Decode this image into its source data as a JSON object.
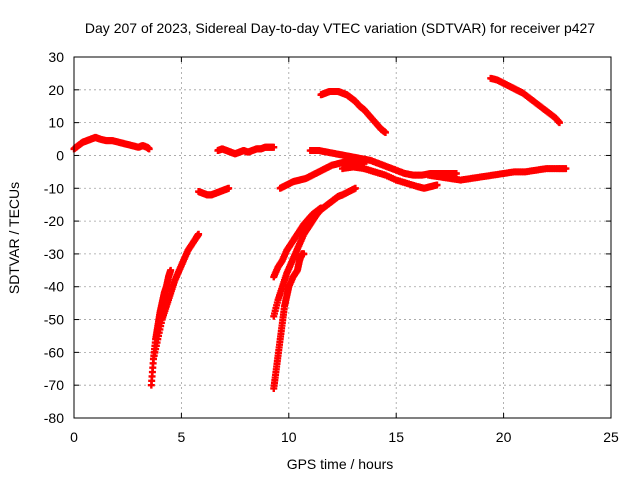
{
  "chart_data": {
    "type": "scatter",
    "title": "Day 207 of 2023, Sidereal Day-to-day VTEC variation (SDTVAR) for receiver p427",
    "xlabel": "GPS time / hours",
    "ylabel": "SDTVAR / TECUs",
    "xlim": [
      0,
      25
    ],
    "ylim": [
      -80,
      30
    ],
    "xticks": [
      0,
      5,
      10,
      15,
      20,
      25
    ],
    "yticks": [
      -80,
      -70,
      -60,
      -50,
      -40,
      -30,
      -20,
      -10,
      0,
      10,
      20,
      30
    ],
    "grid": true,
    "marker": "+",
    "colors": {
      "series": "#ff0000",
      "grid": "#a0a0a0",
      "axis": "#000000"
    },
    "series": [
      {
        "x": [
          0.0,
          0.2,
          0.4,
          0.6,
          0.8,
          1.0,
          1.2,
          1.5,
          1.8,
          2.1,
          2.4,
          2.7,
          3.0,
          3.2,
          3.4,
          3.5
        ],
        "y": [
          2,
          3,
          4,
          4.5,
          5,
          5.5,
          5,
          4.5,
          4.5,
          4,
          3.5,
          3,
          2.5,
          3,
          2.5,
          2
        ]
      },
      {
        "x": [
          3.6,
          3.7,
          3.8,
          3.9,
          4.0,
          4.1,
          4.2,
          4.3,
          4.4,
          4.5
        ],
        "y": [
          -70,
          -62,
          -56,
          -52,
          -48,
          -45,
          -42,
          -40,
          -37,
          -35
        ]
      },
      {
        "x": [
          3.7,
          3.9,
          4.1,
          4.3,
          4.5,
          4.7,
          4.9,
          5.1,
          5.3,
          5.5,
          5.7,
          5.8
        ],
        "y": [
          -62,
          -56,
          -50,
          -46,
          -42,
          -38,
          -35,
          -32,
          -29,
          -27,
          -25,
          -24
        ]
      },
      {
        "x": [
          5.8,
          6.0,
          6.2,
          6.4,
          6.6,
          6.8,
          7.0,
          7.2
        ],
        "y": [
          -11,
          -11.5,
          -12,
          -12,
          -11.5,
          -11,
          -10.5,
          -10
        ]
      },
      {
        "x": [
          6.7,
          6.9,
          7.1,
          7.3,
          7.5,
          7.7,
          7.9,
          8.1,
          8.3,
          8.5,
          8.7,
          8.9,
          9.1,
          9.3
        ],
        "y": [
          1.5,
          2,
          1.5,
          1,
          0.5,
          1,
          1.5,
          1,
          1.5,
          2,
          2,
          2.5,
          2.5,
          2.5
        ]
      },
      {
        "x": [
          9.3,
          9.4,
          9.5,
          9.6,
          9.7,
          9.8,
          9.9,
          10.0,
          10.2,
          10.4,
          10.5,
          10.6,
          10.7
        ],
        "y": [
          -71,
          -66,
          -61,
          -56,
          -51,
          -46,
          -43,
          -40,
          -37,
          -35,
          -32,
          -30,
          -30
        ]
      },
      {
        "x": [
          9.3,
          9.5,
          9.7,
          9.9,
          10.1,
          10.3,
          10.5,
          10.7,
          10.9,
          11.1,
          11.3,
          11.5,
          11.7,
          11.9,
          12.1,
          12.3,
          12.5,
          12.8,
          13.1
        ],
        "y": [
          -49,
          -44,
          -40,
          -36,
          -33,
          -30,
          -27,
          -24,
          -22,
          -20,
          -18,
          -16.5,
          -15.5,
          -14.5,
          -13.5,
          -12.5,
          -12,
          -11,
          -10
        ]
      },
      {
        "x": [
          9.3,
          9.5,
          9.7,
          9.9,
          10.1,
          10.3,
          10.5,
          10.7,
          10.9,
          11.1,
          11.3,
          11.5
        ],
        "y": [
          -37,
          -34,
          -32,
          -29,
          -27,
          -25,
          -23,
          -21,
          -19.5,
          -18,
          -17,
          -16
        ]
      },
      {
        "x": [
          9.6,
          9.9,
          10.2,
          10.5,
          10.8,
          11.1,
          11.4,
          11.7,
          12.0,
          12.3,
          12.6,
          12.9,
          13.2,
          13.5
        ],
        "y": [
          -10,
          -9,
          -8,
          -7.5,
          -7,
          -6,
          -5,
          -4,
          -3,
          -2.5,
          -2,
          -2,
          -2,
          -2.5
        ]
      },
      {
        "x": [
          11.0,
          11.4,
          11.8,
          12.2,
          12.6,
          13.0,
          13.4,
          13.8,
          14.2,
          14.6,
          15.0,
          15.4,
          15.8,
          16.2,
          16.6,
          17.0,
          17.4,
          17.8
        ],
        "y": [
          1.5,
          1.5,
          1,
          0.5,
          0,
          -0.5,
          -1,
          -1.5,
          -2.5,
          -3.5,
          -4.5,
          -5.5,
          -6,
          -6,
          -5.5,
          -5.5,
          -5.5,
          -5.5
        ]
      },
      {
        "x": [
          11.5,
          11.7,
          11.9,
          12.1,
          12.3,
          12.5,
          12.7,
          12.9,
          13.1,
          13.3,
          13.5,
          13.7,
          13.9,
          14.1,
          14.3,
          14.5
        ],
        "y": [
          18.5,
          19,
          19.5,
          19.5,
          19.5,
          19,
          18.5,
          17.5,
          16.5,
          15,
          14,
          12.5,
          11,
          9.5,
          8,
          7
        ]
      },
      {
        "x": [
          12.5,
          13.0,
          13.5,
          14.0,
          14.5,
          15.0,
          15.5,
          16.0,
          16.3,
          16.6,
          16.9
        ],
        "y": [
          -4,
          -3.5,
          -4,
          -5,
          -6,
          -7.5,
          -8.5,
          -9.5,
          -10,
          -9.5,
          -9
        ]
      },
      {
        "x": [
          16.5,
          17.0,
          17.5,
          18.0,
          18.5,
          19.0,
          19.5,
          20.0,
          20.5,
          21.0,
          21.5,
          22.0,
          22.5,
          22.9
        ],
        "y": [
          -6,
          -6.5,
          -7,
          -7.5,
          -7,
          -6.5,
          -6,
          -5.5,
          -5,
          -5,
          -4.5,
          -4,
          -4,
          -4
        ]
      },
      {
        "x": [
          19.4,
          19.7,
          20.0,
          20.3,
          20.6,
          20.9,
          21.2,
          21.5,
          21.8,
          22.1,
          22.4,
          22.6
        ],
        "y": [
          23.5,
          23,
          22,
          21,
          20,
          19,
          17.5,
          16,
          14.5,
          13,
          11.5,
          10
        ]
      }
    ]
  }
}
